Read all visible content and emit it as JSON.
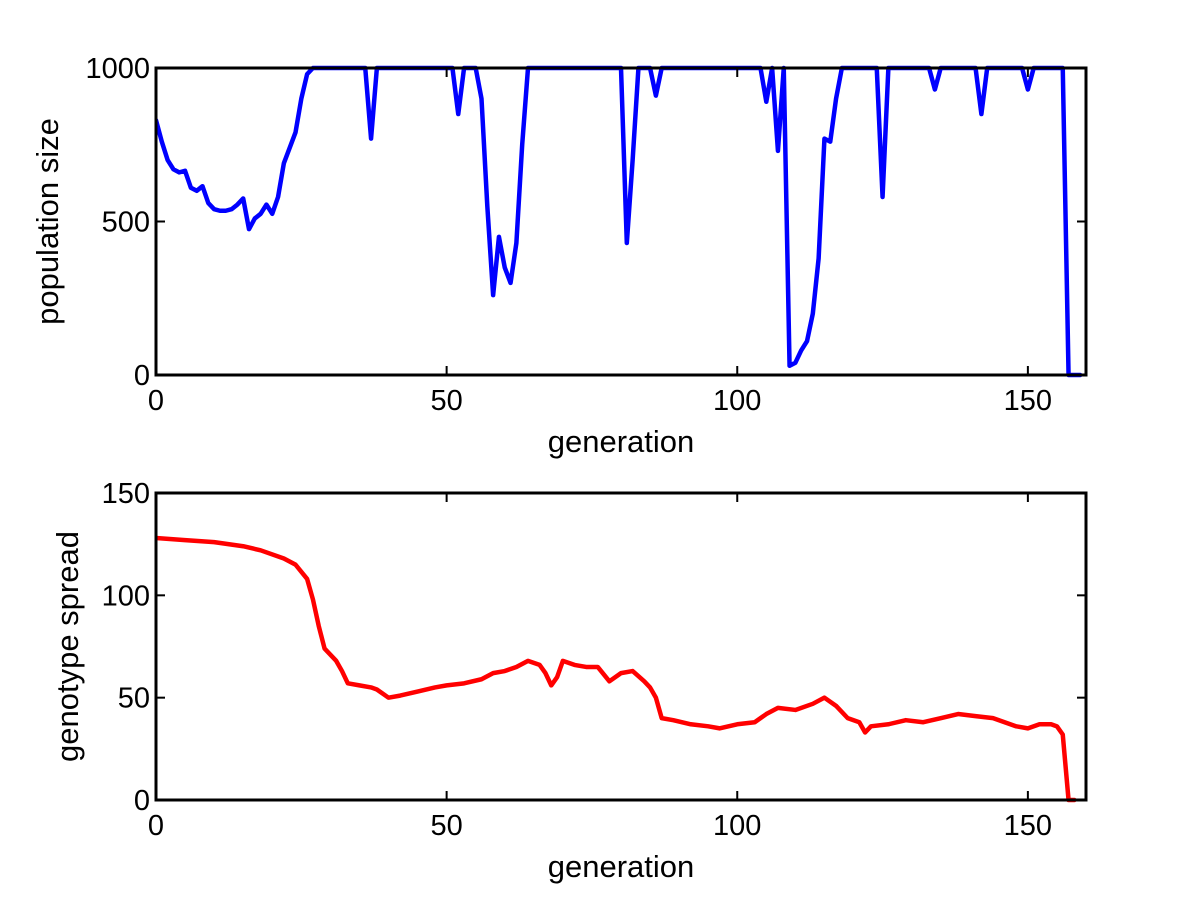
{
  "chart_data": [
    {
      "type": "line",
      "title": "",
      "xlabel": "generation",
      "ylabel": "population size",
      "xlim": [
        0,
        160
      ],
      "ylim": [
        0,
        1000
      ],
      "xticks": [
        "0",
        "50",
        "100",
        "150"
      ],
      "yticks": [
        "0",
        "500",
        "1000"
      ],
      "grid": false,
      "legend": "none",
      "series": [
        {
          "color": "#0000ff",
          "x": [
            0,
            1,
            2,
            3,
            4,
            5,
            6,
            7,
            8,
            9,
            10,
            11,
            12,
            13,
            14,
            15,
            16,
            17,
            18,
            19,
            20,
            21,
            22,
            23,
            24,
            25,
            26,
            27,
            36,
            37,
            38,
            51,
            52,
            53,
            55,
            56,
            57,
            58,
            59,
            60,
            61,
            62,
            63,
            64,
            80,
            81,
            82,
            83,
            85,
            86,
            87,
            104,
            105,
            106,
            107,
            108,
            109,
            110,
            111,
            112,
            113,
            114,
            115,
            116,
            117,
            118,
            124,
            125,
            126,
            133,
            134,
            135,
            141,
            142,
            143,
            149,
            150,
            151,
            154,
            155,
            156,
            157,
            158,
            159
          ],
          "values": [
            830,
            760,
            700,
            670,
            660,
            665,
            610,
            600,
            615,
            560,
            540,
            535,
            535,
            540,
            555,
            575,
            475,
            510,
            525,
            555,
            525,
            580,
            690,
            740,
            790,
            900,
            980,
            1000,
            1000,
            770,
            1000,
            1000,
            850,
            1000,
            1000,
            900,
            550,
            260,
            450,
            350,
            300,
            430,
            750,
            1000,
            1000,
            430,
            700,
            1000,
            1000,
            910,
            1000,
            1000,
            890,
            1000,
            730,
            1000,
            30,
            40,
            80,
            110,
            200,
            380,
            770,
            760,
            900,
            1000,
            1000,
            580,
            1000,
            1000,
            930,
            1000,
            1000,
            850,
            1000,
            1000,
            930,
            1000,
            1000,
            1000,
            1000,
            0,
            0,
            0
          ]
        }
      ]
    },
    {
      "type": "line",
      "title": "",
      "xlabel": "generation",
      "ylabel": "genotype spread",
      "xlim": [
        0,
        160
      ],
      "ylim": [
        0,
        150
      ],
      "xticks": [
        "0",
        "50",
        "100",
        "150"
      ],
      "yticks": [
        "0",
        "50",
        "100",
        "150"
      ],
      "grid": false,
      "legend": "none",
      "series": [
        {
          "color": "#ff0000",
          "x": [
            0,
            5,
            10,
            15,
            18,
            22,
            24,
            26,
            27,
            28,
            29,
            31,
            32,
            33,
            35,
            37,
            38,
            40,
            42,
            45,
            48,
            50,
            53,
            56,
            58,
            60,
            62,
            64,
            66,
            67,
            68,
            69,
            70,
            72,
            74,
            76,
            78,
            80,
            82,
            84,
            85,
            86,
            87,
            89,
            92,
            95,
            97,
            100,
            103,
            104,
            105,
            107,
            110,
            113,
            115,
            117,
            119,
            121,
            122,
            123,
            126,
            129,
            132,
            135,
            138,
            141,
            144,
            146,
            148,
            150,
            152,
            154,
            155,
            156,
            157,
            158
          ],
          "values": [
            128,
            127,
            126,
            124,
            122,
            118,
            115,
            108,
            98,
            85,
            74,
            68,
            63,
            57,
            56,
            55,
            54,
            50,
            51,
            53,
            55,
            56,
            57,
            59,
            62,
            63,
            65,
            68,
            66,
            62,
            56,
            60,
            68,
            66,
            65,
            65,
            58,
            62,
            63,
            58,
            55,
            50,
            40,
            39,
            37,
            36,
            35,
            37,
            38,
            40,
            42,
            45,
            44,
            47,
            50,
            46,
            40,
            38,
            33,
            36,
            37,
            39,
            38,
            40,
            42,
            41,
            40,
            38,
            36,
            35,
            37,
            37,
            36,
            32,
            0,
            0
          ]
        }
      ]
    }
  ]
}
